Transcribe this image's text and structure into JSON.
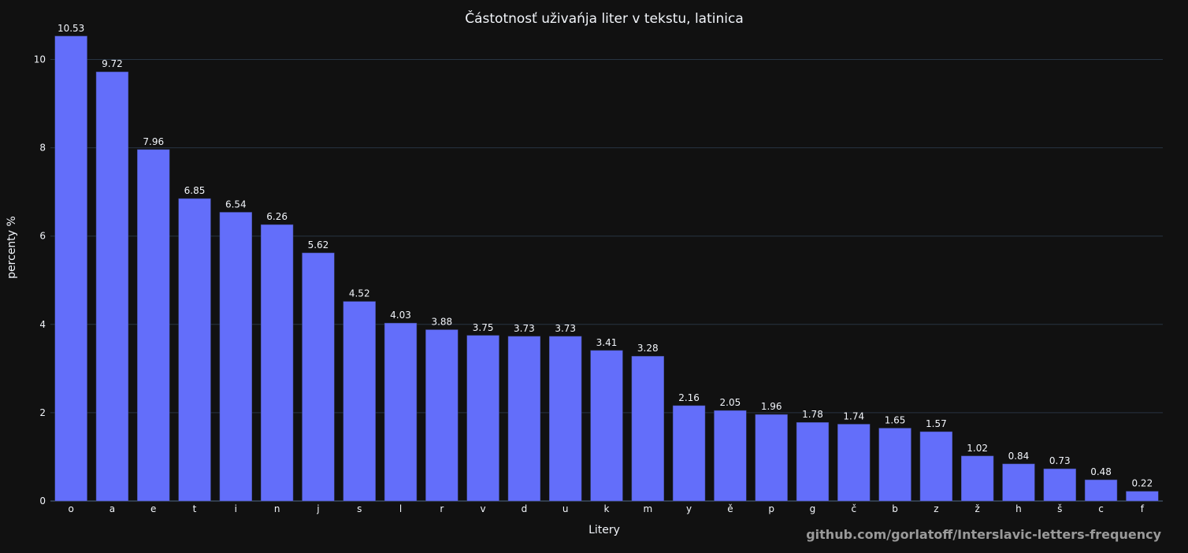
{
  "chart_data": {
    "type": "bar",
    "title": "Částotnosť uživańja liter v tekstu, latinica",
    "xlabel": "Litery",
    "ylabel": "percenty %",
    "categories": [
      "o",
      "a",
      "e",
      "t",
      "i",
      "n",
      "j",
      "s",
      "l",
      "r",
      "v",
      "d",
      "u",
      "k",
      "m",
      "y",
      "ě",
      "p",
      "g",
      "č",
      "b",
      "z",
      "ž",
      "h",
      "š",
      "c",
      "f"
    ],
    "values": [
      10.53,
      9.72,
      7.96,
      6.85,
      6.54,
      6.26,
      5.62,
      4.52,
      4.03,
      3.88,
      3.75,
      3.73,
      3.73,
      3.41,
      3.28,
      2.16,
      2.05,
      1.96,
      1.78,
      1.74,
      1.65,
      1.57,
      1.02,
      0.84,
      0.73,
      0.48,
      0.22
    ],
    "data_labels": [
      "10.53",
      "9.72",
      "7.96",
      "6.85",
      "6.54",
      "6.26",
      "5.62",
      "4.52",
      "4.03",
      "3.88",
      "3.75",
      "3.73",
      "3.73",
      "3.41",
      "3.28",
      "2.16",
      "2.05",
      "1.96",
      "1.78",
      "1.74",
      "1.65",
      "1.57",
      "1.02",
      "0.84",
      "0.73",
      "0.48",
      "0.22"
    ],
    "ylim": [
      0,
      11.08
    ],
    "yticks": [
      0,
      2,
      4,
      6,
      8,
      10
    ],
    "grid": true,
    "legend": "none",
    "colors": {
      "background": "#111111",
      "bar": "#636efa",
      "grid": "#283442",
      "text": "#f2f5fa"
    }
  },
  "watermark": "github.com/gorlatoff/Interslavic-letters-frequency"
}
